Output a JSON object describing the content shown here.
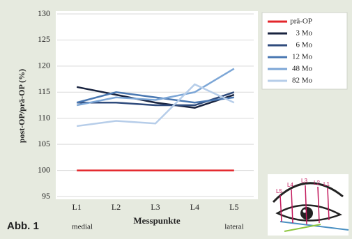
{
  "chart_data": {
    "type": "line",
    "categories": [
      "L1",
      "L2",
      "L3",
      "L4",
      "L5"
    ],
    "x_label": "Messpunkte",
    "y_label": "post-OP/prä-OP (%)",
    "x_annotations": [
      "medial",
      "lateral"
    ],
    "ylim": [
      95,
      130
    ],
    "yticks": [
      95,
      100,
      105,
      110,
      115,
      120,
      125,
      130
    ],
    "grid": true,
    "series": [
      {
        "name": "prä-OP",
        "color": "#e3262b",
        "values": [
          100,
          100,
          100,
          100,
          100
        ]
      },
      {
        "name": "3 Mo",
        "color": "#18233f",
        "values": [
          116,
          114.5,
          113,
          112,
          114.5
        ]
      },
      {
        "name": "6 Mo",
        "color": "#2f4b7c",
        "values": [
          113,
          113,
          112.5,
          112.5,
          115
        ]
      },
      {
        "name": "12 Mo",
        "color": "#4a78b2",
        "values": [
          113,
          115,
          114,
          113,
          114
        ]
      },
      {
        "name": "48 Mo",
        "color": "#7ca6d6",
        "values": [
          112.5,
          114,
          113.5,
          115,
          119.5
        ]
      },
      {
        "name": "82 Mo",
        "color": "#b6cde9",
        "values": [
          108.5,
          109.5,
          109,
          116.5,
          113
        ]
      }
    ]
  },
  "figure_label": "Abb. 1",
  "inset_labels": [
    "L5",
    "L4",
    "L3",
    "L2",
    "L1"
  ]
}
